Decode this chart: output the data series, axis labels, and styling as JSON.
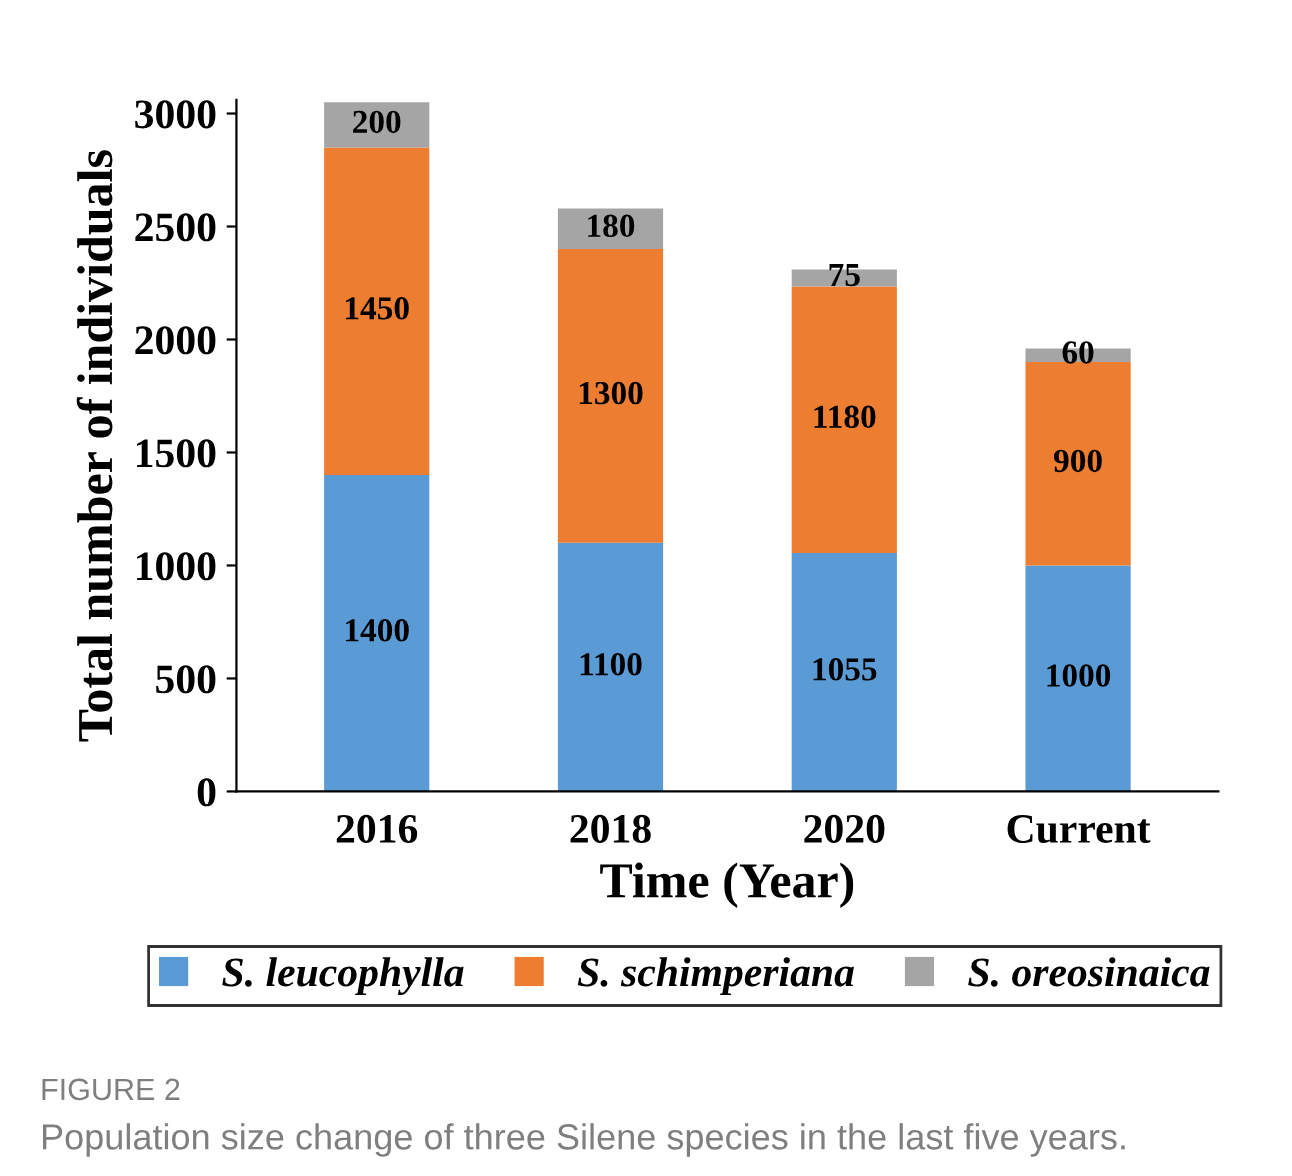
{
  "chart_data": {
    "type": "bar",
    "stacked": true,
    "xlabel": "Time (Year)",
    "ylabel": "Total number of individuals",
    "categories": [
      "2016",
      "2018",
      "2020",
      "Current"
    ],
    "series": [
      {
        "name": "S. leucophylla",
        "color": "#5b9bd5",
        "values": [
          1400,
          1100,
          1055,
          1000
        ]
      },
      {
        "name": "S. schimperiana",
        "color": "#ed7d31",
        "values": [
          1450,
          1300,
          1180,
          900
        ]
      },
      {
        "name": "S. oreosinaica",
        "color": "#a5a5a5",
        "values": [
          200,
          180,
          75,
          60
        ]
      }
    ],
    "ylim": [
      0,
      3060
    ],
    "yticks": [
      0,
      500,
      1000,
      1500,
      2000,
      2500,
      3000
    ],
    "data_labels": true,
    "grid": false,
    "legend": "bottom",
    "annotations": [
      "FIGURE 2",
      "Population size change of three Silene species in the last five years."
    ]
  }
}
